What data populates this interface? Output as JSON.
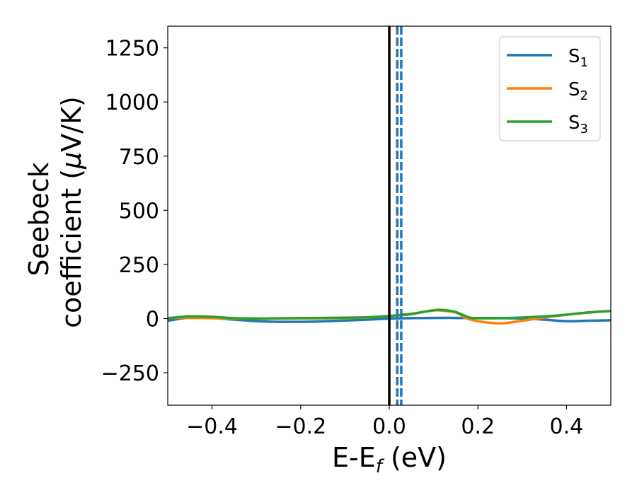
{
  "chart_data": {
    "type": "line",
    "xlabel_main": "E-E",
    "xlabel_sub": "f",
    "xlabel_unit": " (eV)",
    "ylabel_line1": "Seebeck",
    "ylabel_line2_prefix": "coefficient  (",
    "ylabel_mu": "μ",
    "ylabel_line2_suffix": "V/K)",
    "xlim": [
      -0.5,
      0.5
    ],
    "ylim": [
      -400,
      1350
    ],
    "x_ticks": [
      -0.4,
      -0.2,
      0.0,
      0.2,
      0.4
    ],
    "x_tick_labels": [
      "−0.4",
      "−0.2",
      "0.0",
      "0.2",
      "0.4"
    ],
    "y_ticks": [
      -250,
      0,
      250,
      500,
      750,
      1000,
      1250
    ],
    "y_tick_labels": [
      "−250",
      "0",
      "250",
      "500",
      "750",
      "1000",
      "1250"
    ],
    "grid": false,
    "legend_position": "top-right",
    "vertical_lines": [
      {
        "x": 0.0,
        "style": "solid",
        "color": "#000000"
      },
      {
        "x": 0.018,
        "style": "dashed",
        "color": "#1f77b4"
      },
      {
        "x": 0.027,
        "style": "dashed",
        "color": "#1f77b4"
      }
    ],
    "series": [
      {
        "name": "S",
        "sub": "1",
        "color": "#1f77b4",
        "x": [
          -0.5,
          -0.45,
          -0.4,
          -0.35,
          -0.3,
          -0.25,
          -0.2,
          -0.15,
          -0.1,
          -0.05,
          0.0,
          0.05,
          0.1,
          0.15,
          0.2,
          0.25,
          0.3,
          0.35,
          0.4,
          0.45,
          0.5
        ],
        "y": [
          -10,
          5,
          3,
          -5,
          -12,
          -15,
          -15,
          -13,
          -9,
          -5,
          0,
          2,
          3,
          3,
          2,
          2,
          0,
          -5,
          -12,
          -10,
          -8
        ]
      },
      {
        "name": "S",
        "sub": "2",
        "color": "#ff7f0e",
        "x": [
          -0.5,
          -0.45,
          -0.4,
          -0.35,
          -0.3,
          -0.25,
          -0.2,
          -0.15,
          -0.1,
          -0.05,
          0.0,
          0.05,
          0.1,
          0.15,
          0.17,
          0.2,
          0.25,
          0.3,
          0.35,
          0.4,
          0.45,
          0.5
        ],
        "y": [
          3,
          3,
          2,
          0,
          0,
          0,
          1,
          1,
          3,
          5,
          12,
          20,
          38,
          28,
          5,
          -12,
          -22,
          -10,
          5,
          18,
          28,
          35
        ]
      },
      {
        "name": "S",
        "sub": "3",
        "color": "#2ca02c",
        "x": [
          -0.5,
          -0.45,
          -0.4,
          -0.35,
          -0.3,
          -0.25,
          -0.2,
          -0.15,
          -0.1,
          -0.05,
          0.0,
          0.05,
          0.1,
          0.12,
          0.15,
          0.18,
          0.2,
          0.25,
          0.3,
          0.35,
          0.4,
          0.45,
          0.5
        ],
        "y": [
          2,
          10,
          8,
          2,
          0,
          1,
          2,
          3,
          4,
          6,
          12,
          22,
          38,
          40,
          30,
          5,
          2,
          2,
          5,
          10,
          18,
          28,
          35
        ]
      }
    ]
  }
}
